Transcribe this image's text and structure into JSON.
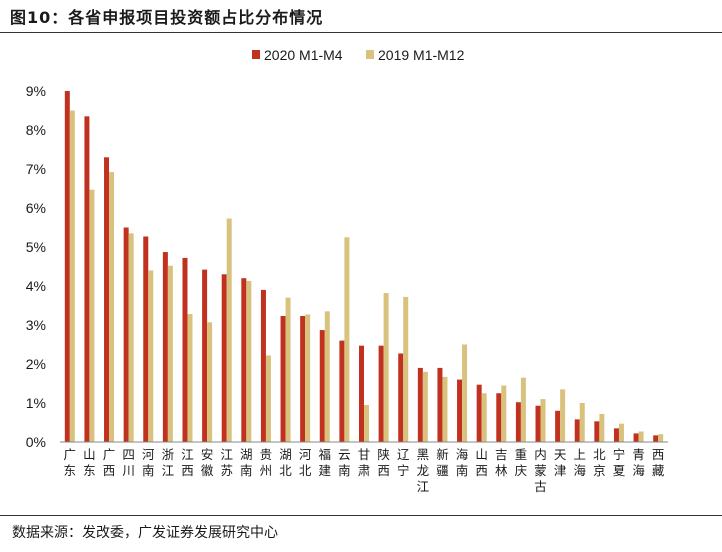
{
  "figure": {
    "title": "图10：各省申报项目投资额占比分布情况",
    "source": "数据来源：发改委，广发证券发展研究中心"
  },
  "chart_data": {
    "type": "bar",
    "title": "",
    "xlabel": "",
    "ylabel": "",
    "ylim": [
      0,
      9
    ],
    "y_unit": "%",
    "y_ticks": [
      "0%",
      "1%",
      "2%",
      "3%",
      "4%",
      "5%",
      "6%",
      "7%",
      "8%",
      "9%"
    ],
    "legend_position": "top-center",
    "grid": false,
    "categories": [
      "广东",
      "山东",
      "广西",
      "四川",
      "河南",
      "浙江",
      "江西",
      "安徽",
      "江苏",
      "湖南",
      "贵州",
      "湖北",
      "河北",
      "福建",
      "云南",
      "甘肃",
      "陕西",
      "辽宁",
      "黑龙江",
      "新疆",
      "海南",
      "山西",
      "吉林",
      "重庆",
      "内蒙古",
      "天津",
      "上海",
      "北京",
      "宁夏",
      "青海",
      "西藏"
    ],
    "series": [
      {
        "name": "2020 M1-M4",
        "color": "#C0311F",
        "values": [
          9.0,
          8.35,
          7.3,
          5.5,
          5.27,
          4.87,
          4.72,
          4.42,
          4.3,
          4.2,
          3.9,
          3.23,
          3.23,
          2.87,
          2.6,
          2.47,
          2.47,
          2.27,
          1.9,
          1.9,
          1.6,
          1.47,
          1.25,
          1.02,
          0.93,
          0.8,
          0.58,
          0.53,
          0.35,
          0.22,
          0.17
        ]
      },
      {
        "name": "2019 M1-M12",
        "color": "#D9C27E",
        "values": [
          8.5,
          6.47,
          6.92,
          5.35,
          4.4,
          4.52,
          3.28,
          3.07,
          5.73,
          4.13,
          2.22,
          3.7,
          3.27,
          3.35,
          5.25,
          0.95,
          3.82,
          3.72,
          1.8,
          1.67,
          2.5,
          1.25,
          1.45,
          1.65,
          1.1,
          1.35,
          1.0,
          0.72,
          0.47,
          0.27,
          0.2
        ]
      }
    ]
  }
}
